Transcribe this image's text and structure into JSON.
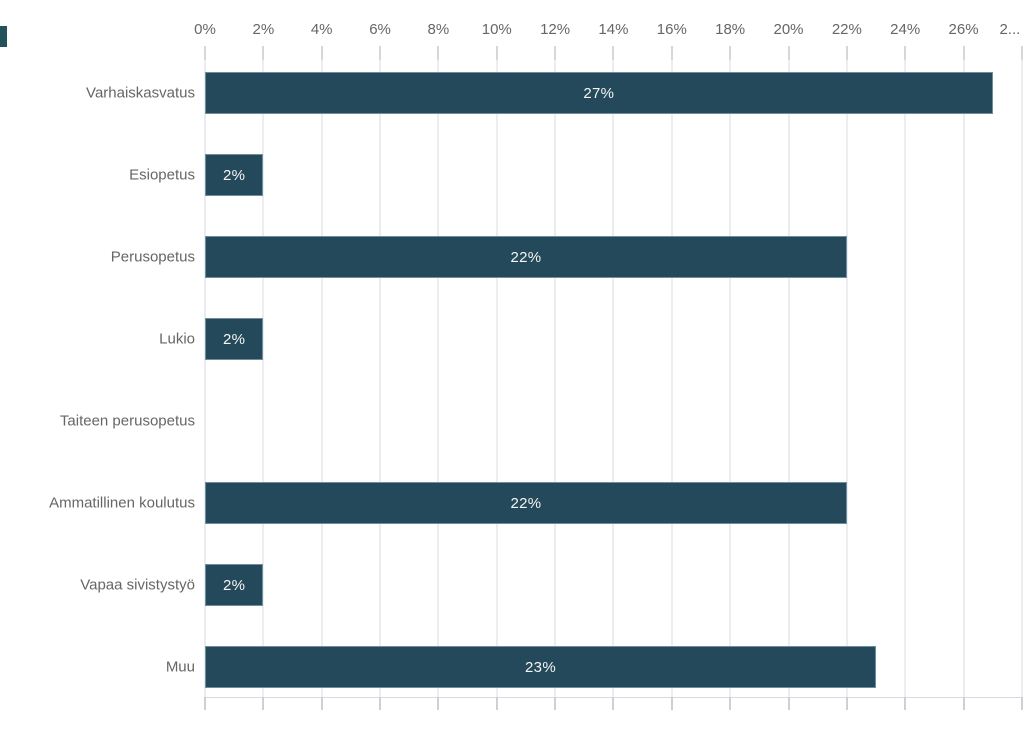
{
  "chart_data": {
    "type": "bar",
    "orientation": "horizontal",
    "title": "",
    "categories": [
      "Varhaiskasvatus",
      "Esiopetus",
      "Perusopetus",
      "Lukio",
      "Taiteen perusopetus",
      "Ammatillinen koulutus",
      "Vapaa sivistystyö",
      "Muu"
    ],
    "values": [
      27,
      2,
      22,
      2,
      0,
      22,
      2,
      23
    ],
    "value_labels": [
      "27%",
      "2%",
      "22%",
      "2%",
      "",
      "22%",
      "2%",
      "23%"
    ],
    "x_axis": {
      "position": "top",
      "tick_labels": [
        "0%",
        "2%",
        "4%",
        "6%",
        "8%",
        "10%",
        "12%",
        "14%",
        "16%",
        "18%",
        "20%",
        "22%",
        "24%",
        "26%",
        "2..."
      ],
      "tick_values": [
        0,
        2,
        4,
        6,
        8,
        10,
        12,
        14,
        16,
        18,
        20,
        22,
        24,
        26,
        28
      ],
      "xlim": [
        0,
        28
      ],
      "grid": true
    },
    "legend": null,
    "colors": {
      "bar": "#24495a",
      "bar_label": "#f5f5f5",
      "axis_text": "#666666",
      "category_text": "#666666",
      "gridline": "#ededf1",
      "top_tick": "#d6d6dc",
      "bottom_tick": "#cfcfd6",
      "axis_line": "#d9d9e0",
      "background": "#ffffff",
      "edge_artifact": "#24525c"
    }
  }
}
